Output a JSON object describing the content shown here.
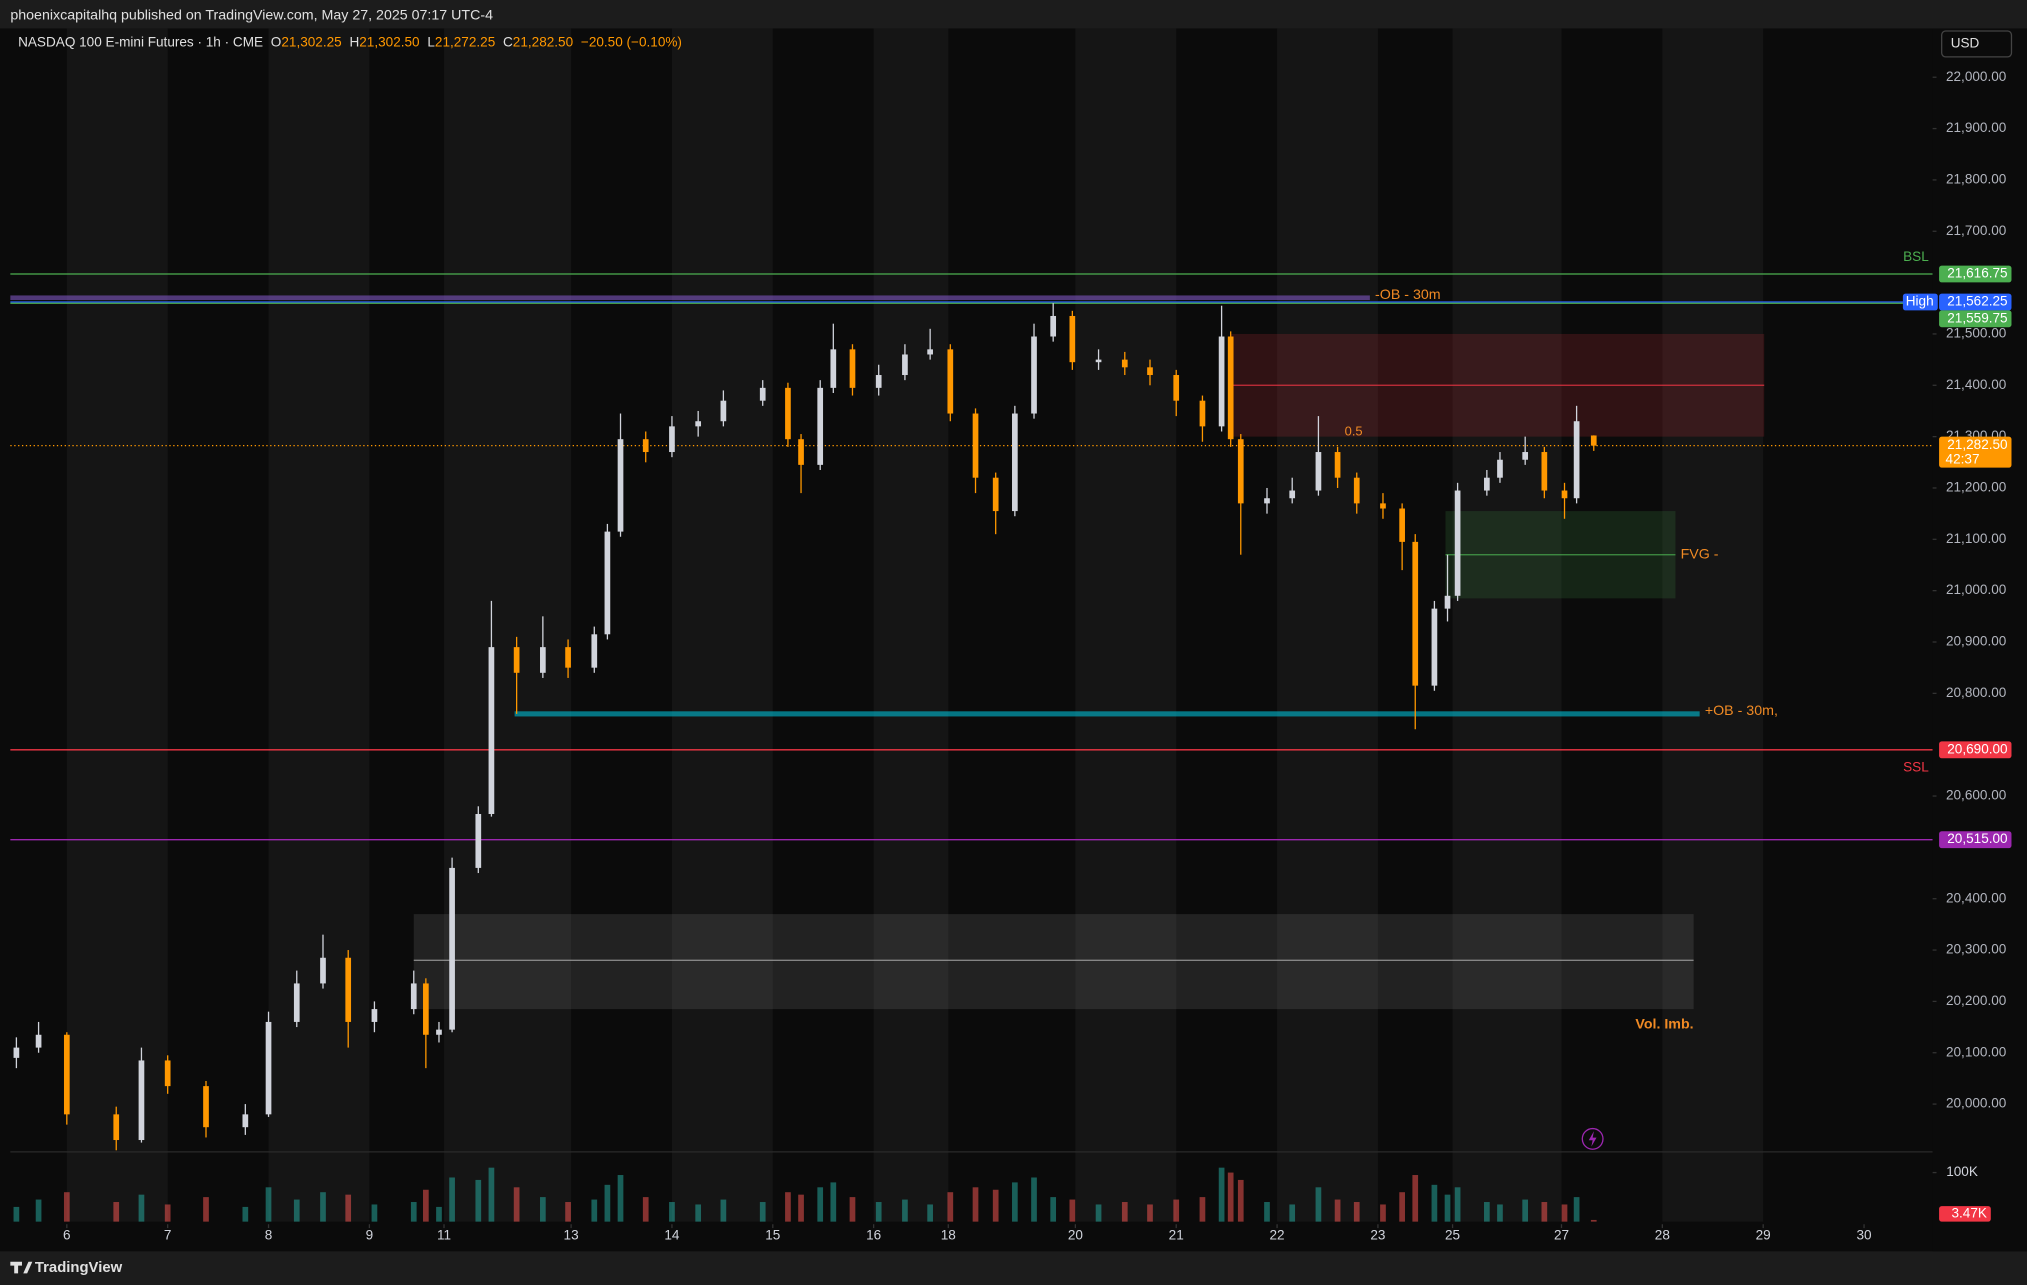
{
  "header": {
    "publisher": "phoenixcapitalhq published on TradingView.com, May 27, 2025 07:17 UTC-4",
    "currency": "USD",
    "brand": "TradingView"
  },
  "chart_data": {
    "type": "candlestick",
    "title": "NASDAQ 100 E-mini Futures · 1h · CME",
    "ohlc_labels": [
      {
        "key": "O",
        "value": "21,302.25"
      },
      {
        "key": "H",
        "value": "21,302.50"
      },
      {
        "key": "L",
        "value": "21,272.25"
      },
      {
        "key": "C",
        "value": "21,282.50"
      }
    ],
    "change": "−20.50 (−0.10%)",
    "up_color": "#d1d4dc",
    "down_color": "#ff9800",
    "annotation_color": "#f08a24",
    "x": [
      -0.5,
      -0.28,
      0,
      0.49,
      0.74,
      1,
      1.38,
      1.77,
      2,
      2.28,
      2.54,
      2.79,
      3.05,
      3.44,
      3.56,
      3.69,
      3.82,
      4.08,
      4.21,
      4.46,
      4.72,
      4.97,
      5.23,
      5.36,
      5.49,
      5.74,
      6,
      6.26,
      6.51,
      6.9,
      7.15,
      7.28,
      7.47,
      7.6,
      7.79,
      8.05,
      8.31,
      8.56,
      8.76,
      9.01,
      9.21,
      9.4,
      9.59,
      9.78,
      9.97,
      10.23,
      10.49,
      10.74,
      11,
      11.26,
      11.45,
      11.54,
      11.64,
      11.9,
      12.15,
      12.41,
      12.6,
      12.79,
      13.05,
      13.24,
      13.37,
      13.56,
      13.69,
      13.79,
      14.08,
      14.21,
      14.46,
      14.65,
      14.85,
      14.97,
      15.14
    ],
    "open": [
      20090,
      20110,
      20135,
      19980,
      19930,
      20085,
      20035,
      19955,
      19980,
      20160,
      20235,
      20285,
      20160,
      20185,
      20235,
      20135,
      20145,
      20460,
      20565,
      20890,
      20840,
      20890,
      20850,
      20915,
      21115,
      21295,
      21270,
      21320,
      21330,
      21370,
      21395,
      21295,
      21245,
      21395,
      21470,
      21395,
      21420,
      21460,
      21470,
      21345,
      21220,
      21155,
      21345,
      21495,
      21535,
      21445,
      21450,
      21435,
      21420,
      21370,
      21320,
      21495,
      21295,
      21170,
      21180,
      21195,
      21270,
      21220,
      21170,
      21160,
      21095,
      20815,
      20965,
      20990,
      21195,
      21220,
      21255,
      21270,
      21195,
      21180,
      21302.25
    ],
    "high": [
      20130,
      20160,
      20140,
      19995,
      20110,
      20095,
      20045,
      20000,
      20180,
      20260,
      20330,
      20300,
      20200,
      20260,
      20245,
      20160,
      20480,
      20580,
      20980,
      20910,
      20950,
      20905,
      20930,
      21130,
      21345,
      21310,
      21340,
      21350,
      21390,
      21410,
      21405,
      21305,
      21410,
      21520,
      21480,
      21440,
      21480,
      21510,
      21480,
      21355,
      21230,
      21360,
      21520,
      21560,
      21545,
      21470,
      21465,
      21450,
      21430,
      21380,
      21555,
      21505,
      21305,
      21200,
      21220,
      21340,
      21280,
      21230,
      21190,
      21170,
      21110,
      20980,
      21070,
      21210,
      21235,
      21270,
      21300,
      21280,
      21210,
      21360,
      21302.5
    ],
    "low": [
      20070,
      20100,
      19960,
      19910,
      19925,
      20020,
      19935,
      19940,
      19975,
      20150,
      20225,
      20110,
      20140,
      20175,
      20070,
      20120,
      20140,
      20450,
      20560,
      20760,
      20830,
      20830,
      20840,
      20905,
      21105,
      21250,
      21260,
      21300,
      21320,
      21360,
      21280,
      21190,
      21235,
      21385,
      21380,
      21380,
      21410,
      21450,
      21330,
      21190,
      21110,
      21145,
      21335,
      21485,
      21430,
      21430,
      21420,
      21400,
      21340,
      21290,
      21310,
      21280,
      21070,
      21150,
      21170,
      21185,
      21200,
      21150,
      21140,
      21040,
      20730,
      20805,
      20940,
      20980,
      21185,
      21210,
      21245,
      21180,
      21140,
      21170,
      21272.25
    ],
    "close": [
      20110,
      20135,
      19980,
      19930,
      20085,
      20035,
      19955,
      19980,
      20160,
      20235,
      20285,
      20160,
      20185,
      20235,
      20135,
      20145,
      20460,
      20565,
      20890,
      20840,
      20890,
      20850,
      20915,
      21115,
      21295,
      21270,
      21320,
      21330,
      21370,
      21395,
      21295,
      21245,
      21395,
      21470,
      21395,
      21420,
      21460,
      21470,
      21345,
      21220,
      21155,
      21345,
      21495,
      21535,
      21445,
      21450,
      21435,
      21420,
      21370,
      21320,
      21495,
      21295,
      21170,
      21180,
      21195,
      21270,
      21220,
      21170,
      21160,
      21095,
      20815,
      20965,
      20990,
      21195,
      21220,
      21255,
      21270,
      21195,
      21180,
      21330,
      21282.5
    ],
    "volume": [
      30000,
      45000,
      60000,
      40000,
      55000,
      35000,
      50000,
      30000,
      70000,
      45000,
      60000,
      55000,
      35000,
      40000,
      65000,
      30000,
      90000,
      85000,
      110000,
      70000,
      50000,
      40000,
      45000,
      75000,
      95000,
      50000,
      40000,
      35000,
      45000,
      40000,
      60000,
      55000,
      70000,
      80000,
      50000,
      40000,
      45000,
      35000,
      60000,
      70000,
      65000,
      80000,
      90000,
      50000,
      45000,
      35000,
      40000,
      35000,
      45000,
      50000,
      110000,
      100000,
      85000,
      40000,
      35000,
      70000,
      45000,
      40000,
      35000,
      60000,
      95000,
      75000,
      55000,
      70000,
      40000,
      35000,
      45000,
      40000,
      35000,
      50000,
      3470
    ],
    "volume_ylim": [
      0,
      137000
    ],
    "volume_yticks": [
      {
        "value": 100000,
        "label": "100K"
      }
    ],
    "volume_last_label": "3.47K",
    "xlim": [
      -0.56,
      18.5
    ],
    "xticks": [
      {
        "value": 0,
        "label": "6"
      },
      {
        "value": 1,
        "label": "7"
      },
      {
        "value": 2,
        "label": "8"
      },
      {
        "value": 3,
        "label": "9"
      },
      {
        "value": 3.74,
        "label": "11"
      },
      {
        "value": 5,
        "label": "13"
      },
      {
        "value": 6,
        "label": "14"
      },
      {
        "value": 7,
        "label": "15"
      },
      {
        "value": 8,
        "label": "16"
      },
      {
        "value": 8.74,
        "label": "18"
      },
      {
        "value": 10,
        "label": "20"
      },
      {
        "value": 11,
        "label": "21"
      },
      {
        "value": 12,
        "label": "22"
      },
      {
        "value": 13,
        "label": "23"
      },
      {
        "value": 13.74,
        "label": "25"
      },
      {
        "value": 14.82,
        "label": "27"
      },
      {
        "value": 15.82,
        "label": "28"
      },
      {
        "value": 16.82,
        "label": "29"
      },
      {
        "value": 17.82,
        "label": "30"
      }
    ],
    "ylim": [
      19907,
      22095
    ],
    "yticks": [
      {
        "value": 22000,
        "label": "22,000.00"
      },
      {
        "value": 21900,
        "label": "21,900.00"
      },
      {
        "value": 21800,
        "label": "21,800.00"
      },
      {
        "value": 21700,
        "label": "21,700.00"
      },
      {
        "value": 21500,
        "label": "21,500.00"
      },
      {
        "value": 21400,
        "label": "21,400.00"
      },
      {
        "value": 21300,
        "label": "21,300.00"
      },
      {
        "value": 21200,
        "label": "21,200.00"
      },
      {
        "value": 21100,
        "label": "21,100.00"
      },
      {
        "value": 21000,
        "label": "21,000.00"
      },
      {
        "value": 20900,
        "label": "20,900.00"
      },
      {
        "value": 20800,
        "label": "20,800.00"
      },
      {
        "value": 20600,
        "label": "20,600.00"
      },
      {
        "value": 20400,
        "label": "20,400.00"
      },
      {
        "value": 20300,
        "label": "20,300.00"
      },
      {
        "value": 20200,
        "label": "20,200.00"
      },
      {
        "value": 20100,
        "label": "20,100.00"
      },
      {
        "value": 20000,
        "label": "20,000.00"
      }
    ],
    "last_price": {
      "value": 21282.5,
      "label": "21,282.50",
      "countdown": "42:37",
      "color": "#ff9800"
    },
    "levels": [
      {
        "name": "BSL",
        "name_side": "above",
        "value": 21616.75,
        "label": "21,616.75",
        "color": "#4caf50"
      },
      {
        "name": "High",
        "name_side": "left",
        "value": 21562.25,
        "label": "21,562.25",
        "color": "#2962ff"
      },
      {
        "value": 21559.75,
        "label": "21,559.75",
        "color": "#4caf50"
      },
      {
        "name": "SSL",
        "name_side": "below",
        "value": 20690,
        "label": "20,690.00",
        "color": "#f23645"
      },
      {
        "value": 20515,
        "label": "20,515.00",
        "color": "#9c27b0"
      }
    ],
    "zones": [
      {
        "label": "-OB - 30m",
        "top": 21575,
        "bottom": 21566,
        "x": [
          -0.56,
          12.92
        ],
        "color": "#7e57c2"
      },
      {
        "top": 21500,
        "bottom": 21300,
        "mid": 21400,
        "x": [
          11.54,
          16.83
        ],
        "color": "#f23645"
      },
      {
        "label": "FVG -",
        "top": 21155,
        "bottom": 20985,
        "mid": 21070,
        "x": [
          13.67,
          15.95
        ],
        "color": "#4caf50"
      },
      {
        "label": "+OB - 30m,",
        "top": 20765,
        "bottom": 20755,
        "x": [
          4.44,
          16.19
        ],
        "color": "#00bcd4"
      },
      {
        "label": "Vol. Imb.",
        "top": 20370,
        "bottom": 20185,
        "mid": 20280,
        "x": [
          3.44,
          16.13
        ],
        "color": "#9e9e9e"
      }
    ],
    "annotations": [
      {
        "text": "0.5",
        "x": 12.67,
        "y": 21309
      }
    ]
  }
}
